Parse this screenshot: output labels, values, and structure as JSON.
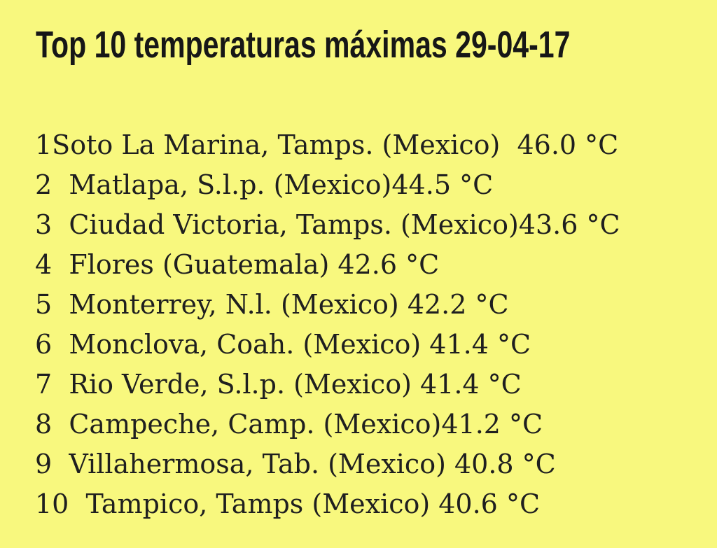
{
  "page": {
    "background_color": "#f8f87e",
    "text_color": "#1f1f1f"
  },
  "header": {
    "title": "Top 10 temperaturas máximas 29-04-17",
    "date": "29-04-17"
  },
  "list": {
    "rows": [
      {
        "rank": "1",
        "location": "Soto La Marina, Tamps. (Mexico)",
        "temperature": "46.0 °C",
        "display": "1Soto La Marina, Tamps. (Mexico)  46.0 °C"
      },
      {
        "rank": "2",
        "location": "Matlapa, S.l.p. (Mexico)",
        "temperature": "44.5 °C",
        "display": "2  Matlapa, S.l.p. (Mexico)44.5 °C"
      },
      {
        "rank": "3",
        "location": "Ciudad Victoria, Tamps. (Mexico)",
        "temperature": "43.6 °C",
        "display": "3  Ciudad Victoria, Tamps. (Mexico)43.6 °C"
      },
      {
        "rank": "4",
        "location": "Flores (Guatemala)",
        "temperature": "42.6 °C",
        "display": "4  Flores (Guatemala) 42.6 °C"
      },
      {
        "rank": "5",
        "location": "Monterrey, N.l. (Mexico)",
        "temperature": "42.2 °C",
        "display": "5  Monterrey, N.l. (Mexico) 42.2 °C"
      },
      {
        "rank": "6",
        "location": "Monclova, Coah. (Mexico)",
        "temperature": "41.4 °C",
        "display": "6  Monclova, Coah. (Mexico) 41.4 °C"
      },
      {
        "rank": "7",
        "location": "Rio Verde, S.l.p. (Mexico)",
        "temperature": "41.4 °C",
        "display": "7  Rio Verde, S.l.p. (Mexico) 41.4 °C"
      },
      {
        "rank": "8",
        "location": "Campeche, Camp. (Mexico)",
        "temperature": "41.2 °C",
        "display": "8  Campeche, Camp. (Mexico)41.2 °C"
      },
      {
        "rank": "9",
        "location": "Villahermosa, Tab. (Mexico)",
        "temperature": "40.8 °C",
        "display": "9  Villahermosa, Tab. (Mexico) 40.8 °C"
      },
      {
        "rank": "10",
        "location": "Tampico, Tamps (Mexico)",
        "temperature": "40.6 °C",
        "display": "10  Tampico, Tamps (Mexico) 40.6 °C"
      }
    ]
  },
  "chart_data": {
    "type": "table",
    "title": "Top 10 temperaturas máximas 29-04-17",
    "columns": [
      "rank",
      "location",
      "temperature_c"
    ],
    "rows": [
      [
        1,
        "Soto La Marina, Tamps. (Mexico)",
        46.0
      ],
      [
        2,
        "Matlapa, S.l.p. (Mexico)",
        44.5
      ],
      [
        3,
        "Ciudad Victoria, Tamps. (Mexico)",
        43.6
      ],
      [
        4,
        "Flores (Guatemala)",
        42.6
      ],
      [
        5,
        "Monterrey, N.l. (Mexico)",
        42.2
      ],
      [
        6,
        "Monclova, Coah. (Mexico)",
        41.4
      ],
      [
        7,
        "Rio Verde, S.l.p. (Mexico)",
        41.4
      ],
      [
        8,
        "Campeche, Camp. (Mexico)",
        41.2
      ],
      [
        9,
        "Villahermosa, Tab. (Mexico)",
        40.8
      ],
      [
        10,
        "Tampico, Tamps (Mexico)",
        40.6
      ]
    ],
    "unit": "°C",
    "layout": "ranked list, no gridlines, yellow background"
  }
}
